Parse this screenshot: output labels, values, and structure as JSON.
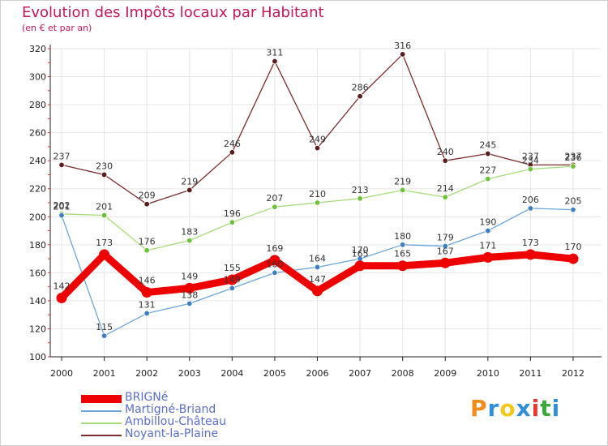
{
  "title": "Evolution des Impôts locaux par Habitant",
  "subtitle": "(en € et par an)",
  "logo": {
    "text": "Proxiti",
    "letter_colors": [
      "#f28c1c",
      "#2f8fd8",
      "#f2c81c",
      "#2f8fd8",
      "#e8372e",
      "#3aa83a",
      "#2f8fd8"
    ]
  },
  "chart_data": {
    "type": "line",
    "title": "Evolution des Impôts locaux par Habitant",
    "subtitle": "(en € et par an)",
    "xlabel": "",
    "ylabel": "",
    "x": [
      "2000",
      "2001",
      "2002",
      "2003",
      "2004",
      "2005",
      "2006",
      "2007",
      "2008",
      "2009",
      "2010",
      "2011",
      "2012"
    ],
    "ylim": [
      100,
      320
    ],
    "yticks": [
      100,
      120,
      140,
      160,
      180,
      200,
      220,
      240,
      260,
      280,
      300,
      320
    ],
    "grid": true,
    "legend_position": "bottom-left",
    "series": [
      {
        "name": "BRIGNé",
        "color": "#ee0000",
        "marker_color": "#ee0000",
        "emphasis": "thick",
        "values": [
          142,
          173,
          146,
          149,
          155,
          169,
          147,
          165,
          165,
          167,
          171,
          173,
          170
        ]
      },
      {
        "name": "Martigné-Briand",
        "color": "#6ca6d8",
        "marker_color": "#3c7fc2",
        "emphasis": "thin",
        "values": [
          201,
          115,
          131,
          138,
          149,
          160,
          164,
          170,
          180,
          179,
          190,
          206,
          205
        ]
      },
      {
        "name": "Ambillou-Château",
        "color": "#a6dd7a",
        "marker_color": "#6cc23a",
        "emphasis": "thin",
        "values": [
          202,
          201,
          176,
          183,
          196,
          207,
          210,
          213,
          219,
          214,
          227,
          234,
          236
        ]
      },
      {
        "name": "Noyant-la-Plaine",
        "color": "#7b2d2d",
        "marker_color": "#5a1c1c",
        "emphasis": "thin",
        "values": [
          237,
          230,
          209,
          219,
          246,
          311,
          249,
          286,
          316,
          240,
          245,
          237,
          237
        ]
      }
    ]
  }
}
